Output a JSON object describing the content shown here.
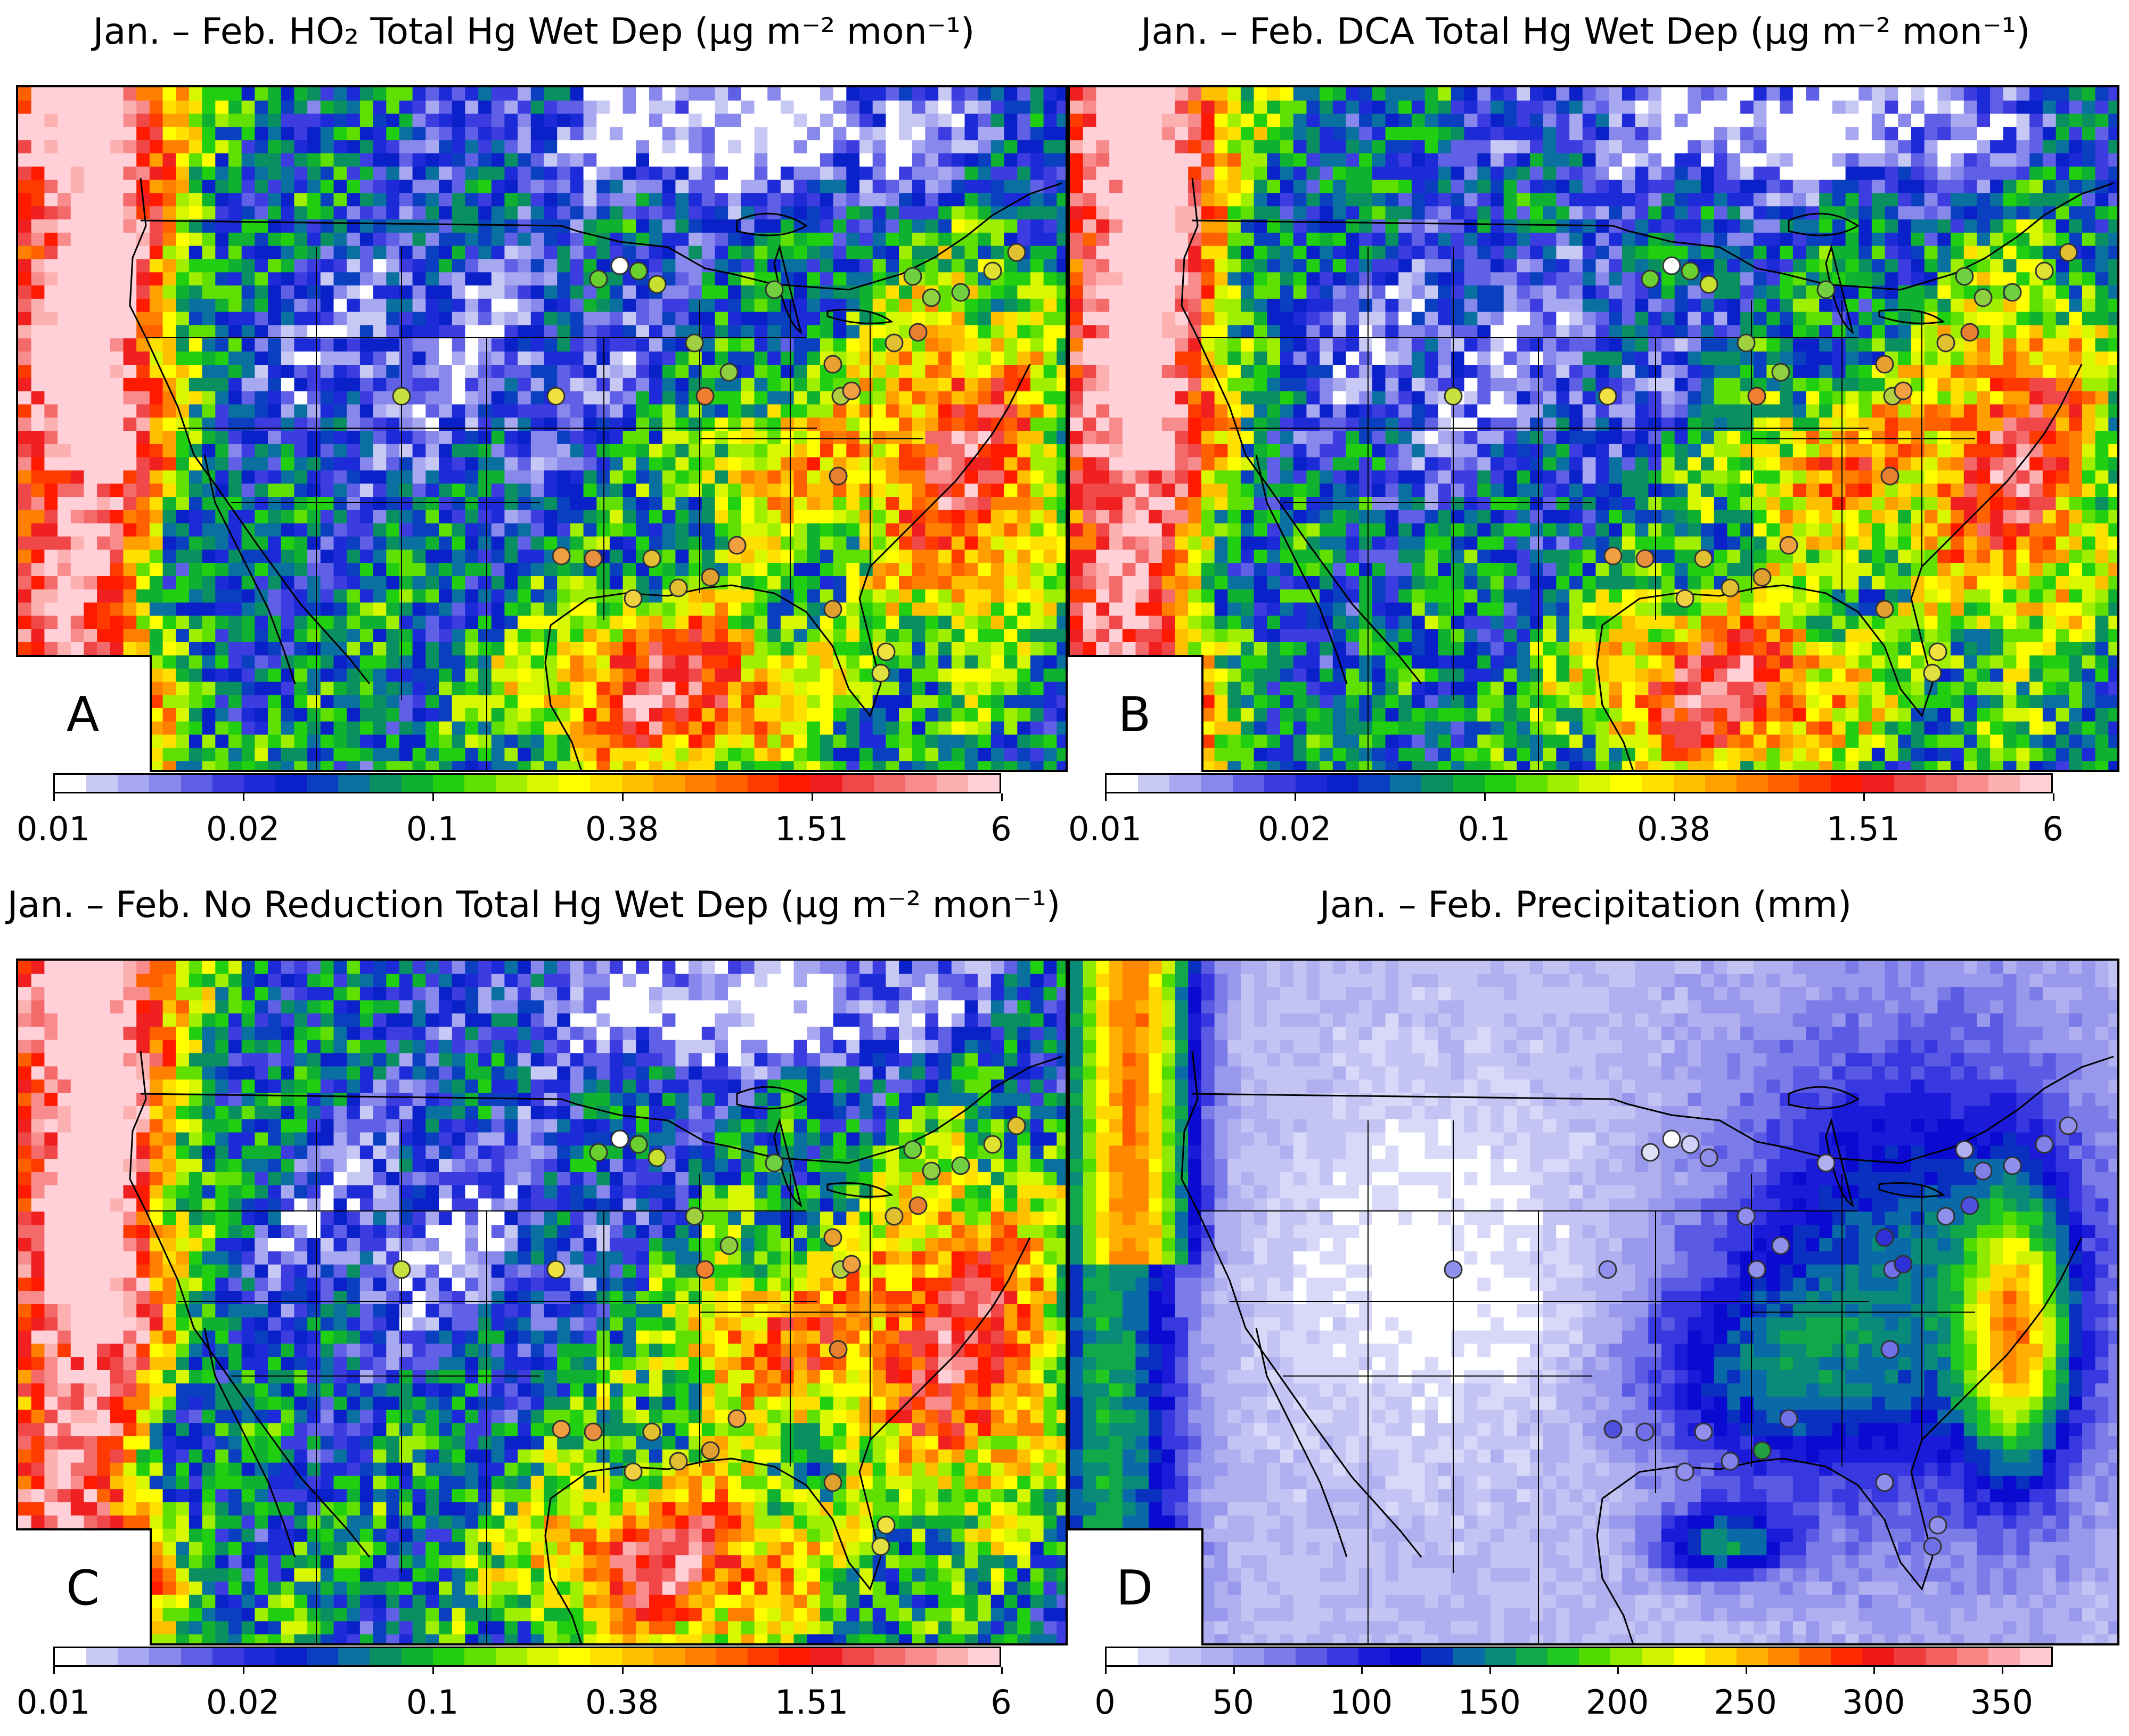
{
  "panels": [
    {
      "id": "A",
      "title": "Jan. – Feb. HO₂ Total Hg Wet Dep (µg m⁻² mon⁻¹)",
      "label": "A",
      "scale": "hg",
      "colorbar_ticks": [
        "0.01",
        "0.02",
        "0.1",
        "0.38",
        "1.51",
        "6"
      ]
    },
    {
      "id": "B",
      "title": "Jan. – Feb. DCA Total Hg Wet Dep (µg m⁻² mon⁻¹)",
      "label": "B",
      "scale": "hg",
      "colorbar_ticks": [
        "0.01",
        "0.02",
        "0.1",
        "0.38",
        "1.51",
        "6"
      ]
    },
    {
      "id": "C",
      "title": "Jan. – Feb. No Reduction Total Hg Wet Dep (µg m⁻² mon⁻¹)",
      "label": "C",
      "scale": "hg",
      "colorbar_ticks": [
        "0.01",
        "0.02",
        "0.1",
        "0.38",
        "1.51",
        "6"
      ]
    },
    {
      "id": "D",
      "title": "Jan. – Feb. Precipitation (mm)",
      "label": "D",
      "scale": "precip",
      "colorbar_ticks": [
        "0",
        "50",
        "100",
        "150",
        "200",
        "250",
        "300",
        "350"
      ]
    }
  ],
  "colorbars": {
    "hg": [
      "#ffffff",
      "#c8c8f5",
      "#a8a8f0",
      "#8888ec",
      "#6060e6",
      "#3c3ce0",
      "#1c2ad8",
      "#0a20c8",
      "#0a40c0",
      "#0a70a0",
      "#0a9060",
      "#10b030",
      "#20d010",
      "#60e000",
      "#a0ee00",
      "#d8f800",
      "#ffff00",
      "#ffe000",
      "#ffc000",
      "#ffa000",
      "#ff8000",
      "#ff6000",
      "#ff3a00",
      "#ff1a00",
      "#f02020",
      "#f04848",
      "#f46a6a",
      "#f88c8c",
      "#fcb0b0",
      "#ffd0d8"
    ],
    "precip": [
      "#ffffff",
      "#d8d8f8",
      "#c4c4f4",
      "#b0b0f0",
      "#9898ec",
      "#7c7ce8",
      "#5a5ae4",
      "#3838e0",
      "#1a1ad8",
      "#0a0ad0",
      "#0a30c0",
      "#0a6aa8",
      "#0a8a78",
      "#10a848",
      "#20c820",
      "#50dc00",
      "#90ea00",
      "#d0f400",
      "#ffff00",
      "#ffd800",
      "#ffb000",
      "#ff8800",
      "#ff5a00",
      "#ff2a00",
      "#f01818",
      "#f03c3c",
      "#f46060",
      "#f88484",
      "#fca8b0",
      "#ffcad4"
    ]
  },
  "station_colors": {
    "A": [
      "#ffffff",
      "#6ad030",
      "#6ad030",
      "#c8e030",
      "#70d040",
      "#70d040",
      "#8ed040",
      "#70d040",
      "#e0e030",
      "#e0c030",
      "#e88030",
      "#e0c030",
      "#a0d040",
      "#90d040",
      "#f08030",
      "#e8a030",
      "#b0d040",
      "#f0a040",
      "#e88030",
      "#f0e040",
      "#f0a040",
      "#e89040",
      "#e0c030",
      "#f0d040",
      "#e0c030",
      "#e0a030",
      "#f0a040",
      "#e0a030",
      "#f0e040",
      "#e0e040",
      "#c8e040"
    ],
    "B": [
      "#ffffff",
      "#6ad030",
      "#6ad030",
      "#c8e030",
      "#70d040",
      "#70d040",
      "#8ed040",
      "#70d040",
      "#e0e030",
      "#e0c030",
      "#e88030",
      "#e0c030",
      "#a0d040",
      "#90d040",
      "#f08030",
      "#e8a030",
      "#b0d040",
      "#f0a040",
      "#e88030",
      "#f0e040",
      "#f0a040",
      "#e89040",
      "#e0c030",
      "#f0d040",
      "#e0c030",
      "#e0a030",
      "#f0a040",
      "#e0a030",
      "#f0e040",
      "#e0e040",
      "#c8e040"
    ],
    "C": [
      "#ffffff",
      "#6ad030",
      "#6ad030",
      "#c8e030",
      "#70d040",
      "#70d040",
      "#8ed040",
      "#70d040",
      "#e0e030",
      "#e0c030",
      "#e88030",
      "#e0c030",
      "#a0d040",
      "#90d040",
      "#f08030",
      "#e8a030",
      "#b0d040",
      "#f0a040",
      "#e88030",
      "#f0e040",
      "#f0a040",
      "#e89040",
      "#e0c030",
      "#f0d040",
      "#e0c030",
      "#e0a030",
      "#f0a040",
      "#e0a030",
      "#f0e040",
      "#e0e040",
      "#c8e040"
    ],
    "D": [
      "#ffffff",
      "#e0e0f8",
      "#d0d0f8",
      "#9090ec",
      "#b0b0f0",
      "#b0b0f0",
      "#8080e8",
      "#9090ec",
      "#8080e8",
      "#9090ec",
      "#5050e0",
      "#9090ec",
      "#9090ec",
      "#9090ec",
      "#9090ec",
      "#3030d8",
      "#7070e8",
      "#3030d8",
      "#7070e8",
      "#9090ec",
      "#5050e0",
      "#7070e8",
      "#9090ec",
      "#9090ec",
      "#8080e8",
      "#20a040",
      "#7070e8",
      "#9090ec",
      "#9090ec",
      "#7070e8",
      "#9090ec"
    ]
  }
}
